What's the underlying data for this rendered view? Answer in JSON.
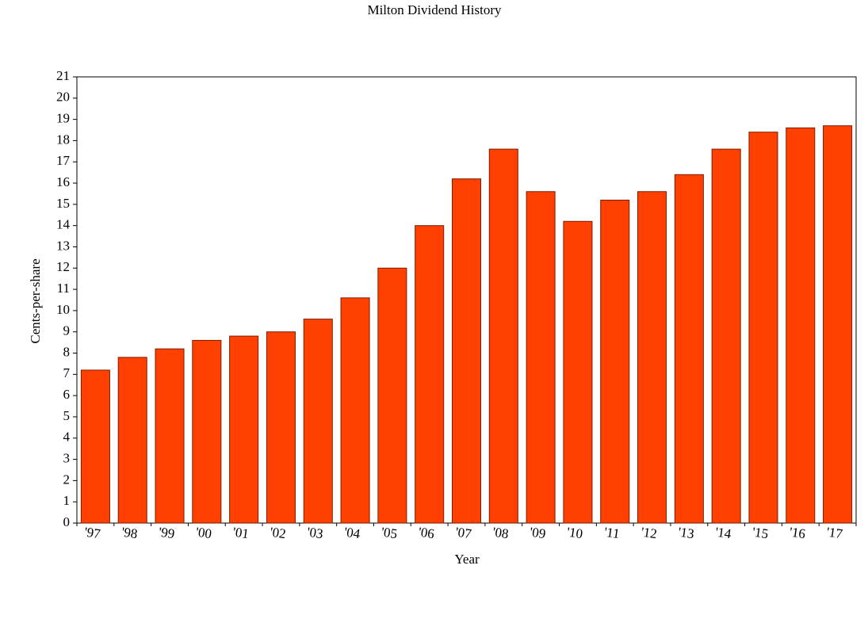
{
  "chart_data": {
    "type": "bar",
    "title": "Milton Dividend History",
    "x_label": "Year",
    "y_label": "Cents-per-share",
    "categories": [
      "'97",
      "'98",
      "'99",
      "'00",
      "'01",
      "'02",
      "'03",
      "'04",
      "'05",
      "'06",
      "'07",
      "'08",
      "'09",
      "'10",
      "'11",
      "'12",
      "'13",
      "'14",
      "'15",
      "'16",
      "'17"
    ],
    "values": [
      7.2,
      7.8,
      8.2,
      8.6,
      8.8,
      9.0,
      9.6,
      10.6,
      12.0,
      14.0,
      16.2,
      17.6,
      15.6,
      14.2,
      15.2,
      15.6,
      16.4,
      17.6,
      18.4,
      18.6,
      18.7
    ],
    "color": "#ff4000",
    "ylim": [
      0,
      21
    ],
    "yticks": [
      0,
      1,
      2,
      3,
      4,
      5,
      6,
      7,
      8,
      9,
      10,
      11,
      12,
      13,
      14,
      15,
      16,
      17,
      18,
      19,
      20,
      21
    ],
    "grid": false
  }
}
